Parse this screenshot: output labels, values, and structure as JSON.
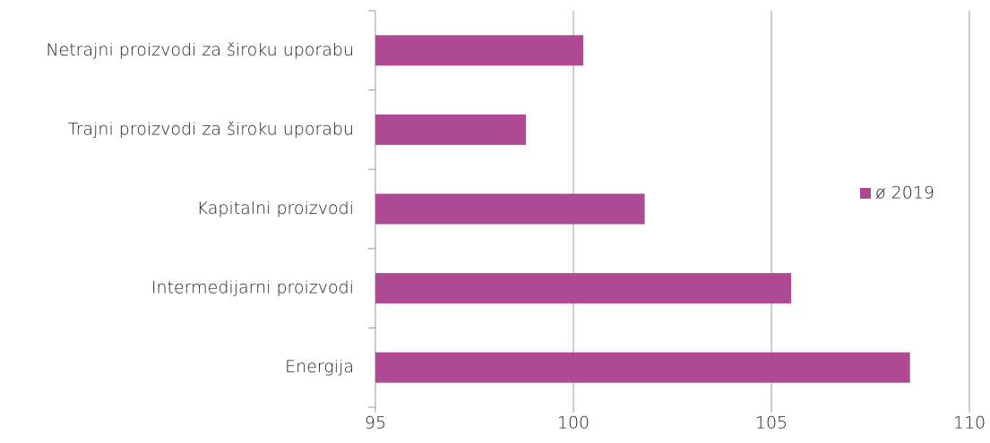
{
  "chart_data": {
    "type": "bar",
    "orientation": "horizontal",
    "categories": [
      "Netrajni proizvodi za široku uporabu",
      "Trajni proizvodi za široku uporabu",
      "Kapitalni proizvodi",
      "Intermedijarni proizvodi",
      "Energija"
    ],
    "series": [
      {
        "name": "ø 2019",
        "color": "#ae4a94",
        "values": [
          100.25,
          98.8,
          101.8,
          105.5,
          108.5
        ]
      }
    ],
    "xlim": [
      95,
      110
    ],
    "xticks": [
      95,
      100,
      105,
      110
    ],
    "grid": true,
    "legend": "right"
  }
}
